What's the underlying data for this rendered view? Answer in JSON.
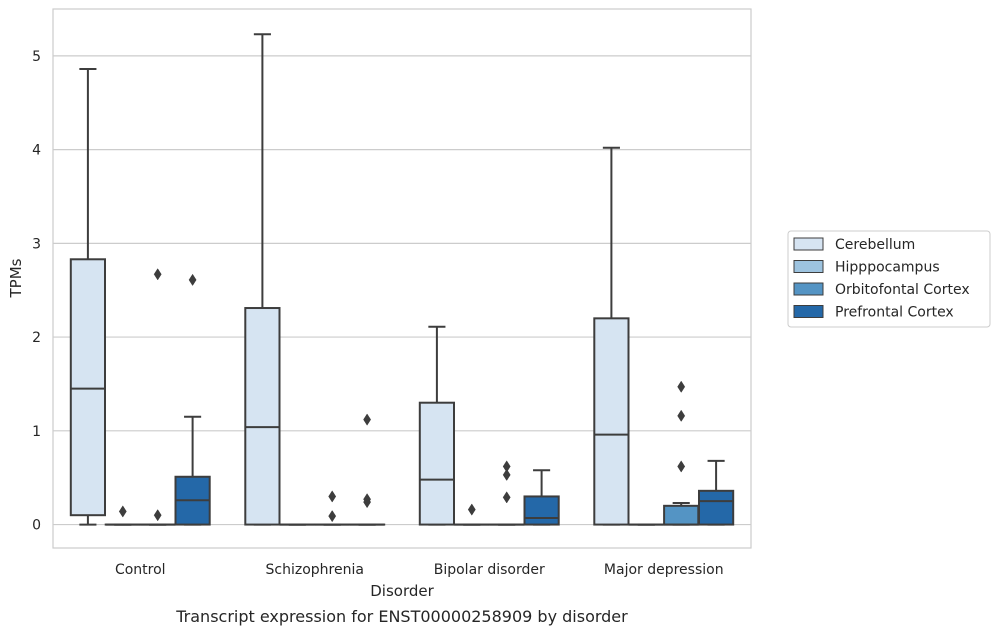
{
  "chart_data": {
    "type": "boxplot",
    "title": "",
    "caption": "Transcript expression for ENST00000258909 by disorder",
    "xlabel": "Disorder",
    "ylabel": "TPMs",
    "ylim": [
      -0.25,
      5.5
    ],
    "yticks": [
      0,
      1,
      2,
      3,
      4,
      5
    ],
    "grid": true,
    "legend_position": "right",
    "categories": [
      "Control",
      "Schizophrenia",
      "Bipolar disorder",
      "Major depression"
    ],
    "series": [
      {
        "name": "Cerebellum",
        "color": "#d6e4f2",
        "boxes": [
          {
            "min": 0.0,
            "q1": 0.1,
            "median": 1.45,
            "q3": 2.83,
            "max": 4.86,
            "outliers": []
          },
          {
            "min": 0.0,
            "q1": 0.0,
            "median": 1.04,
            "q3": 2.31,
            "max": 5.23,
            "outliers": []
          },
          {
            "min": 0.0,
            "q1": 0.0,
            "median": 0.48,
            "q3": 1.3,
            "max": 2.11,
            "outliers": []
          },
          {
            "min": 0.0,
            "q1": 0.0,
            "median": 0.96,
            "q3": 2.2,
            "max": 4.02,
            "outliers": []
          }
        ]
      },
      {
        "name": "Hipppocampus",
        "color": "#9dc3df",
        "boxes": [
          {
            "min": 0.0,
            "q1": 0.0,
            "median": 0.0,
            "q3": 0.0,
            "max": 0.0,
            "outliers": [
              0.14
            ]
          },
          {
            "min": 0.0,
            "q1": 0.0,
            "median": 0.0,
            "q3": 0.0,
            "max": 0.0,
            "outliers": []
          },
          {
            "min": 0.0,
            "q1": 0.0,
            "median": 0.0,
            "q3": 0.0,
            "max": 0.0,
            "outliers": [
              0.16
            ]
          },
          {
            "min": 0.0,
            "q1": 0.0,
            "median": 0.0,
            "q3": 0.0,
            "max": 0.0,
            "outliers": []
          }
        ]
      },
      {
        "name": "Orbitofontal Cortex",
        "color": "#5494c4",
        "boxes": [
          {
            "min": 0.0,
            "q1": 0.0,
            "median": 0.0,
            "q3": 0.0,
            "max": 0.0,
            "outliers": [
              0.1,
              2.67
            ]
          },
          {
            "min": 0.0,
            "q1": 0.0,
            "median": 0.0,
            "q3": 0.0,
            "max": 0.0,
            "outliers": [
              0.09,
              0.3
            ]
          },
          {
            "min": 0.0,
            "q1": 0.0,
            "median": 0.0,
            "q3": 0.0,
            "max": 0.0,
            "outliers": [
              0.29,
              0.53,
              0.62
            ]
          },
          {
            "min": 0.0,
            "q1": 0.0,
            "median": 0.0,
            "q3": 0.2,
            "max": 0.23,
            "outliers": [
              0.62,
              1.16,
              1.47
            ]
          }
        ]
      },
      {
        "name": "Prefrontal Cortex",
        "color": "#2468a8",
        "boxes": [
          {
            "min": 0.0,
            "q1": 0.0,
            "median": 0.26,
            "q3": 0.51,
            "max": 1.15,
            "outliers": [
              2.61
            ]
          },
          {
            "min": 0.0,
            "q1": 0.0,
            "median": 0.0,
            "q3": 0.0,
            "max": 0.0,
            "outliers": [
              0.24,
              0.27,
              1.12
            ]
          },
          {
            "min": 0.0,
            "q1": 0.0,
            "median": 0.07,
            "q3": 0.3,
            "max": 0.58,
            "outliers": []
          },
          {
            "min": 0.0,
            "q1": 0.0,
            "median": 0.25,
            "q3": 0.36,
            "max": 0.68,
            "outliers": []
          }
        ]
      }
    ]
  },
  "colors": {
    "edge": "#3d3d3d",
    "grid": "#cccccc",
    "frame": "#cccccc"
  }
}
